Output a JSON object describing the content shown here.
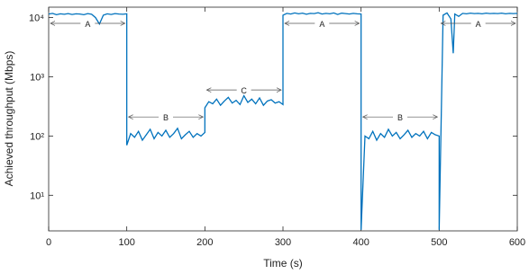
{
  "chart_data": {
    "type": "line",
    "xlabel": "Time (s)",
    "ylabel": "Achieved throughput (Mbps)",
    "color": "#0072bd",
    "log_y": true,
    "xlim": [
      0,
      600
    ],
    "xticks": [
      0,
      100,
      200,
      300,
      400,
      500,
      600
    ],
    "ylim": [
      2.5,
      15000
    ],
    "yticks": [
      {
        "value": 10,
        "label": "10¹"
      },
      {
        "value": 100,
        "label": "10²"
      },
      {
        "value": 1000,
        "label": "10³"
      },
      {
        "value": 10000,
        "label": "10⁴"
      }
    ],
    "x": [
      0,
      5,
      10,
      15,
      20,
      25,
      30,
      35,
      40,
      45,
      50,
      55,
      60,
      65,
      70,
      75,
      80,
      85,
      90,
      95,
      100,
      100,
      105,
      110,
      115,
      120,
      125,
      130,
      135,
      140,
      145,
      150,
      155,
      160,
      165,
      170,
      175,
      180,
      185,
      190,
      195,
      200,
      200,
      205,
      210,
      215,
      220,
      225,
      230,
      235,
      240,
      245,
      250,
      255,
      260,
      265,
      270,
      275,
      280,
      285,
      290,
      295,
      300,
      300,
      305,
      310,
      315,
      320,
      325,
      330,
      335,
      340,
      345,
      350,
      355,
      360,
      365,
      370,
      375,
      380,
      385,
      390,
      395,
      400,
      400,
      405,
      410,
      415,
      420,
      425,
      430,
      435,
      440,
      445,
      450,
      455,
      460,
      465,
      470,
      475,
      480,
      485,
      490,
      495,
      500,
      500,
      505,
      510,
      515,
      518,
      520,
      525,
      530,
      535,
      540,
      545,
      550,
      555,
      560,
      565,
      570,
      575,
      580,
      585,
      590,
      595,
      600
    ],
    "values": [
      11500,
      11800,
      11200,
      11600,
      11400,
      11700,
      11300,
      11600,
      11500,
      11200,
      11700,
      11400,
      10000,
      7800,
      11000,
      11600,
      11300,
      11700,
      11500,
      11400,
      11600,
      70,
      110,
      95,
      120,
      85,
      105,
      130,
      90,
      115,
      100,
      125,
      95,
      110,
      135,
      90,
      105,
      120,
      95,
      110,
      100,
      115,
      300,
      380,
      350,
      420,
      330,
      390,
      450,
      360,
      400,
      340,
      480,
      370,
      420,
      350,
      440,
      330,
      390,
      410,
      360,
      380,
      340,
      11000,
      11800,
      11500,
      12000,
      11600,
      11900,
      11400,
      11800,
      11700,
      12100,
      11500,
      11800,
      11600,
      12000,
      11300,
      11900,
      11700,
      11500,
      11800,
      11600,
      11500,
      2.6,
      100,
      90,
      120,
      85,
      110,
      95,
      130,
      100,
      115,
      90,
      105,
      125,
      95,
      110,
      100,
      120,
      90,
      115,
      105,
      100,
      2.6,
      11000,
      12000,
      9500,
      2500,
      11500,
      10500,
      11800,
      11600,
      11900,
      11700,
      11800,
      11600,
      11900,
      11700,
      11800,
      11700,
      11900,
      11600,
      11800,
      11700,
      11800
    ],
    "annotations": [
      {
        "text": "A",
        "x": [
          0,
          100
        ],
        "y": 8000
      },
      {
        "text": "B",
        "x": [
          100,
          200
        ],
        "y": 210
      },
      {
        "text": "C",
        "x": [
          200,
          300
        ],
        "y": 600
      },
      {
        "text": "A",
        "x": [
          300,
          400
        ],
        "y": 8000
      },
      {
        "text": "B",
        "x": [
          400,
          500
        ],
        "y": 210
      },
      {
        "text": "A",
        "x": [
          500,
          600
        ],
        "y": 8000
      }
    ]
  }
}
